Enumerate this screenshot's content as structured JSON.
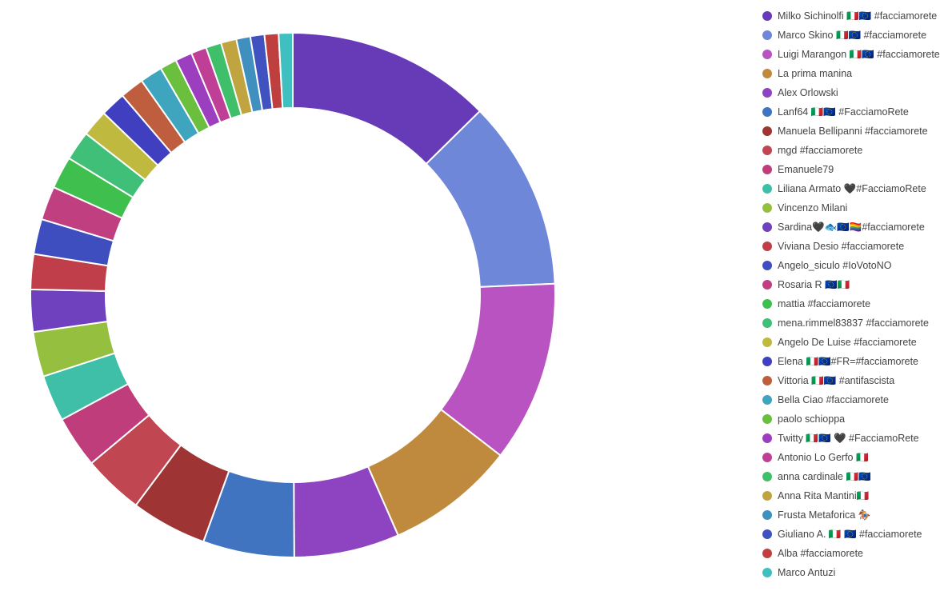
{
  "chart_data": {
    "type": "pie",
    "donut": true,
    "legend_position": "right",
    "categories": [
      "Milko Sichinolfi 🇮🇹🇪🇺 #facciamorete",
      "Marco Skino 🇮🇹🇪🇺 #facciamorete",
      "Luigi Marangon 🇮🇹🇪🇺 #facciamorete",
      "La prima manina",
      "Alex Orlowski",
      "Lanf64 🇮🇹🇪🇺 #FacciamoRete",
      "Manuela Bellipanni #facciamorete",
      "mgd #facciamorete",
      "Emanuele79",
      "Liliana Armato 🖤#FacciamoRete",
      "Vincenzo Milani",
      "Sardina🖤🐟🇪🇺🏳️‍🌈#facciamorete",
      "Viviana Desio #facciamorete",
      "Angelo_siculo #IoVotoNO",
      "Rosaria R 🇪🇺🇮🇹",
      "mattia #facciamorete",
      "mena.rimmel83837 #facciamorete",
      "Angelo De Luise #facciamorete",
      "Elena 🇮🇹🇪🇺#FR=#facciamorete",
      "Vittoria 🇮🇹🇪🇺 #antifascista",
      "Bella Ciao #facciamorete",
      "paolo schioppa",
      "Twitty 🇮🇹🇪🇺 🖤 #FacciamoRete",
      "Antonio Lo Gerfo 🇮🇹",
      "anna cardinale 🇮🇹🇪🇺",
      "Anna Rita Mantini🇮🇹",
      "Frusta Metaforica 🏇",
      "Giuliano A. 🇮🇹 🇪🇺 #facciamorete",
      "Alba #facciamorete",
      "Marco Antuzi"
    ],
    "values": [
      14.6,
      13.5,
      12.9,
      9.2,
      7.5,
      6.5,
      5.4,
      4.3,
      3.7,
      3.3,
      3.2,
      3.0,
      2.5,
      2.5,
      2.4,
      2.3,
      2.1,
      1.9,
      1.8,
      1.7,
      1.6,
      1.2,
      1.2,
      1.1,
      1.1,
      1.1,
      1.0,
      1.0,
      1.0,
      1.0
    ],
    "colors": [
      "#673AB7",
      "#6F87D8",
      "#BA53C2",
      "#BF8A3E",
      "#8E43C0",
      "#4073C0",
      "#9E3433",
      "#C04651",
      "#BF3D7A",
      "#3FBFA8",
      "#94BF3F",
      "#6F41BF",
      "#BF3E49",
      "#3F4EBF",
      "#BF3F81",
      "#3FBF4E",
      "#3FBF78",
      "#BFBA3F",
      "#3F3FBF",
      "#BF5E3F",
      "#3FA5BF",
      "#6BBF3F",
      "#9B3FBF",
      "#BF3F97",
      "#3FBF6A",
      "#BFA43F",
      "#3F90BF",
      "#3F52BF",
      "#BF3F3F",
      "#3FBFBF"
    ]
  }
}
